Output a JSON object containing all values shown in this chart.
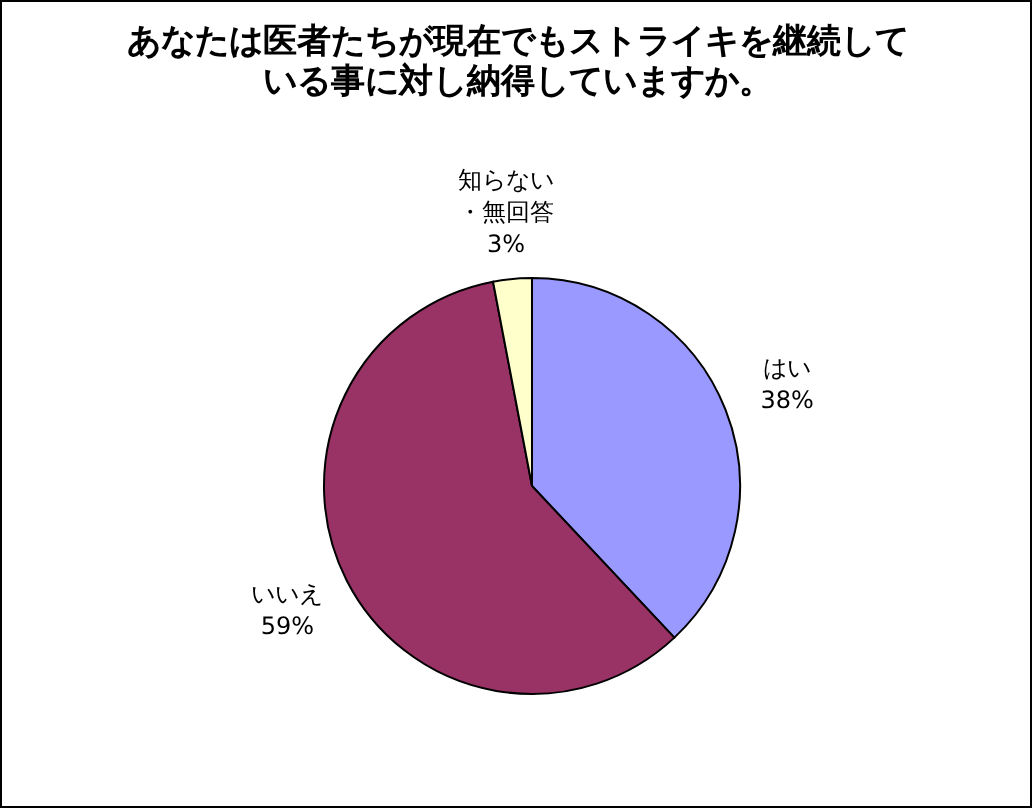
{
  "chart_data": {
    "type": "pie",
    "title": "あなたは医者たちが現在でもストライキを継続している事に対し納得していますか。",
    "categories": [
      "はい",
      "いいえ",
      "知らない・無回答"
    ],
    "values": [
      38,
      59,
      3
    ],
    "value_labels": [
      "38%",
      "59%",
      "3%"
    ],
    "colors": [
      "#9999ff",
      "#993366",
      "#ffffcc"
    ]
  }
}
